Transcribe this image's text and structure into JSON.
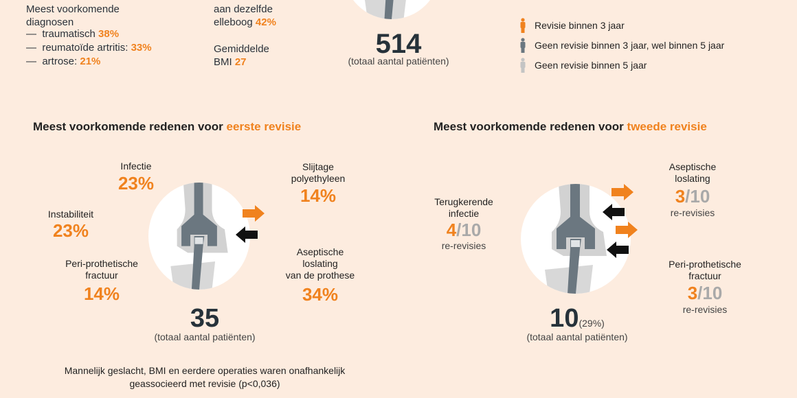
{
  "top": {
    "diagnoses": {
      "title_line1": "Meest voorkomende",
      "title_line2": "diagnosen",
      "items": [
        {
          "dash": "—",
          "label": "traumatisch",
          "value": "38%"
        },
        {
          "dash": "—",
          "label": "reumatoïde artritis:",
          "value": "33%"
        },
        {
          "dash": "—",
          "label": "artrose:",
          "value": "21%"
        }
      ]
    },
    "elbow": {
      "line1": "aan dezelfde",
      "line2": "elleboog",
      "value": "42%"
    },
    "bmi": {
      "line1": "Gemiddelde",
      "line2": "BMI",
      "value": "27"
    },
    "total": {
      "value": "514",
      "label": "(totaal aantal patiënten)"
    },
    "legend": [
      {
        "label": "Revisie binnen 3 jaar",
        "color": "#f0821e"
      },
      {
        "label": "Geen revisie binnen 3 jaar, wel binnen 5 jaar",
        "color": "#6b7780"
      },
      {
        "label": "Geen revisie binnen 5 jaar",
        "color": "#c4c4c4"
      }
    ]
  },
  "first": {
    "heading_prefix": "Meest voorkomende redenen voor ",
    "heading_accent": "eerste revisie",
    "reasons": {
      "infectie": {
        "l1": "Infectie",
        "value": "23%"
      },
      "instabiliteit": {
        "l1": "Instabiliteit",
        "value": "23%"
      },
      "fractuur": {
        "l1": "Peri-prothetische",
        "l2": "fractuur",
        "value": "14%"
      },
      "slijtage": {
        "l1": "Slijtage",
        "l2": "polyethyleen",
        "value": "14%"
      },
      "aseptisch": {
        "l1": "Aseptische",
        "l2": "loslating",
        "l3": "van de prothese",
        "value": "34%"
      }
    },
    "total": {
      "value": "35",
      "label": "(totaal aantal patiënten)"
    },
    "footnote_line1": "Mannelijk geslacht, BMI en eerdere operaties waren onafhankelijk",
    "footnote_line2": "geassocieerd met revisie (p<0,036)"
  },
  "second": {
    "heading_prefix": "Meest voorkomende redenen voor ",
    "heading_accent": "tweede revisie",
    "reasons": {
      "infectie": {
        "l1": "Terugkerende",
        "l2": "infectie",
        "num": "4",
        "den": "/10",
        "unit": "re-revisies"
      },
      "aseptisch": {
        "l1": "Aseptische",
        "l2": "loslating",
        "num": "3",
        "den": "/10",
        "unit": "re-revisies"
      },
      "fractuur": {
        "l1": "Peri-prothetische",
        "l2": "fractuur",
        "num": "3",
        "den": "/10",
        "unit": "re-revisies"
      }
    },
    "total": {
      "value": "10",
      "pct": "(29%)",
      "label": "(totaal aantal patiënten)"
    }
  }
}
